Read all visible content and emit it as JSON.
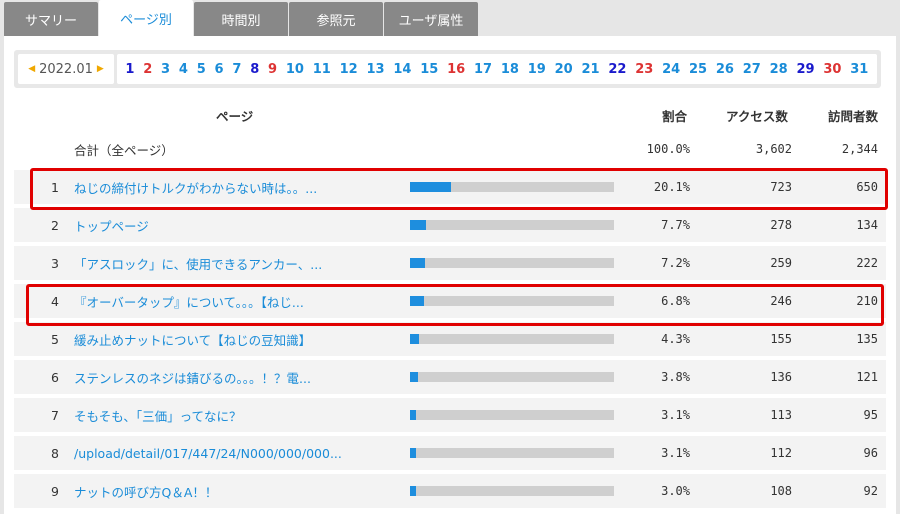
{
  "tabs": [
    {
      "label": "サマリー",
      "active": false
    },
    {
      "label": "ページ別",
      "active": true
    },
    {
      "label": "時間別",
      "active": false
    },
    {
      "label": "参照元",
      "active": false
    },
    {
      "label": "ユーザ属性",
      "active": false
    }
  ],
  "date_nav": {
    "month": "2022.01",
    "days": [
      "1",
      "2",
      "3",
      "4",
      "5",
      "6",
      "7",
      "8",
      "9",
      "10",
      "11",
      "12",
      "13",
      "14",
      "15",
      "16",
      "17",
      "18",
      "19",
      "20",
      "21",
      "22",
      "23",
      "24",
      "25",
      "26",
      "27",
      "28",
      "29",
      "30",
      "31"
    ]
  },
  "table": {
    "headers": {
      "page": "ページ",
      "ratio": "割合",
      "access": "アクセス数",
      "visitors": "訪問者数"
    },
    "total": {
      "title": "合計（全ページ）",
      "ratio": "100.0%",
      "access": "3,602",
      "visitors": "2,344"
    },
    "rows": [
      {
        "rank": "1",
        "title": "ねじの締付けトルクがわからない時は。。...",
        "ratio": "20.1%",
        "access": "723",
        "visitors": "650",
        "share": 0.201
      },
      {
        "rank": "2",
        "title": "トップページ",
        "ratio": "7.7%",
        "access": "278",
        "visitors": "134",
        "share": 0.077
      },
      {
        "rank": "3",
        "title": "「アスロック」に、使用できるアンカー、...",
        "ratio": "7.2%",
        "access": "259",
        "visitors": "222",
        "share": 0.072
      },
      {
        "rank": "4",
        "title": "『オーバータップ』について。。。【ねじ...",
        "ratio": "6.8%",
        "access": "246",
        "visitors": "210",
        "share": 0.068
      },
      {
        "rank": "5",
        "title": "緩み止めナットについて【ねじの豆知識】",
        "ratio": "4.3%",
        "access": "155",
        "visitors": "135",
        "share": 0.043
      },
      {
        "rank": "6",
        "title": "ステンレスのネジは錆びるの。。。！？電...",
        "ratio": "3.8%",
        "access": "136",
        "visitors": "121",
        "share": 0.038
      },
      {
        "rank": "7",
        "title": "そもそも、「三価」ってなに？",
        "ratio": "3.1%",
        "access": "113",
        "visitors": "95",
        "share": 0.031
      },
      {
        "rank": "8",
        "title": "/upload/detail/017/447/24/N000/000/000...",
        "ratio": "3.1%",
        "access": "112",
        "visitors": "96",
        "share": 0.031
      },
      {
        "rank": "9",
        "title": "ナットの呼び方Q＆A！！",
        "ratio": "3.0%",
        "access": "108",
        "visitors": "92",
        "share": 0.03
      }
    ]
  },
  "colors": {
    "accent": "#1a8cd8",
    "bar_fill": "#1e8ede",
    "highlight": "#e00000",
    "saturday": "#2222cc",
    "sunday": "#dd3333"
  }
}
